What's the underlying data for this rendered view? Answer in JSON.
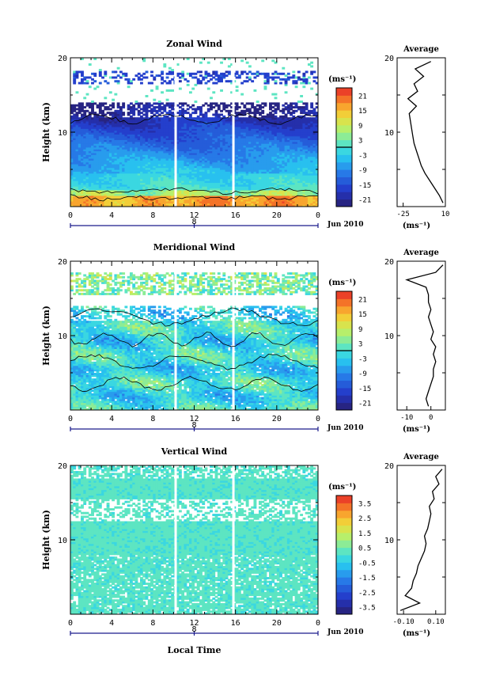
{
  "chart_data": [
    {
      "type": "heatmap",
      "title": "Zonal Wind",
      "ylabel": "Height (km)",
      "ylim": [
        0,
        20
      ],
      "yticks": [
        "20",
        "10"
      ],
      "xlim": [
        0,
        24
      ],
      "xticks": [
        "0",
        "4",
        "8",
        "12",
        "16",
        "20",
        "0"
      ],
      "day_label": "8",
      "date_label": "Jun 2010",
      "colorbar": {
        "unit": "(ms⁻¹)",
        "ticks": [
          "21",
          "15",
          "9",
          "3",
          "-3",
          "-9",
          "-15",
          "-21"
        ],
        "range": [
          -24,
          24
        ]
      },
      "contour_levels": [
        0
      ],
      "gaps_hours": [
        10.2,
        15.8
      ],
      "profile": {
        "title": "Average",
        "xlabel": "(ms⁻¹)",
        "xticks": [
          "-25",
          "10"
        ],
        "xlim": [
          -30,
          10
        ],
        "height": [
          0,
          1,
          2,
          3,
          4,
          5,
          6,
          7,
          8,
          9,
          10,
          11,
          12,
          13,
          14,
          15,
          16,
          17,
          18,
          19
        ],
        "value": [
          8,
          5,
          1,
          -3,
          -7,
          -10,
          -12,
          -14,
          -16,
          -17,
          -18,
          -19,
          -20,
          -14,
          -21,
          -13,
          -16,
          -8,
          -15,
          -2
        ]
      }
    },
    {
      "type": "heatmap",
      "title": "Meridional Wind",
      "ylabel": "Height (km)",
      "ylim": [
        0,
        20
      ],
      "yticks": [
        "20",
        "10"
      ],
      "xlim": [
        0,
        24
      ],
      "xticks": [
        "0",
        "4",
        "8",
        "12",
        "16",
        "20",
        "0"
      ],
      "day_label": "8",
      "date_label": "Jun 2010",
      "colorbar": {
        "unit": "(ms⁻¹)",
        "ticks": [
          "21",
          "15",
          "9",
          "3",
          "-3",
          "-9",
          "-15",
          "-21"
        ],
        "range": [
          -24,
          24
        ]
      },
      "contour_levels": [
        0
      ],
      "gaps_hours": [
        10.2,
        15.8
      ],
      "profile": {
        "title": "Average",
        "xlabel": "(ms⁻¹)",
        "xticks": [
          "-10",
          "0"
        ],
        "xlim": [
          -14,
          6
        ],
        "height": [
          0,
          1,
          2,
          3,
          4,
          5,
          6,
          7,
          8,
          9,
          10,
          11,
          12,
          13,
          14,
          15,
          16,
          17,
          18,
          19
        ],
        "value": [
          -1,
          -2,
          -1,
          0,
          1,
          1,
          2,
          1,
          2,
          0,
          1,
          0,
          -1,
          0,
          -1,
          -1,
          -2,
          -10,
          2,
          5
        ]
      }
    },
    {
      "type": "heatmap",
      "title": "Vertical Wind",
      "ylabel": "Height (km)",
      "xlabel": "Local Time",
      "ylim": [
        0,
        20
      ],
      "yticks": [
        "20",
        "10"
      ],
      "xlim": [
        0,
        24
      ],
      "xticks": [
        "0",
        "4",
        "8",
        "12",
        "16",
        "20",
        "0"
      ],
      "day_label": "8",
      "date_label": "Jun 2010",
      "colorbar": {
        "unit": "(ms⁻¹)",
        "ticks": [
          "3.5",
          "2.5",
          "1.5",
          "0.5",
          "-0.5",
          "-1.5",
          "-2.5",
          "-3.5"
        ],
        "range": [
          -4,
          4
        ]
      },
      "gaps_hours": [
        10.2,
        15.8
      ],
      "profile": {
        "title": "Average",
        "xlabel": "(ms⁻¹)",
        "xticks": [
          "-0.10",
          "0.10"
        ],
        "xlim": [
          -0.14,
          0.16
        ],
        "height": [
          0,
          1,
          2,
          3,
          4,
          5,
          6,
          7,
          8,
          9,
          10,
          11,
          12,
          13,
          14,
          15,
          16,
          17,
          18,
          19
        ],
        "value": [
          -0.12,
          0.0,
          -0.09,
          -0.05,
          -0.04,
          -0.02,
          -0.01,
          0.01,
          0.03,
          0.04,
          0.03,
          0.05,
          0.06,
          0.07,
          0.06,
          0.09,
          0.08,
          0.12,
          0.1,
          0.14
        ]
      }
    }
  ]
}
